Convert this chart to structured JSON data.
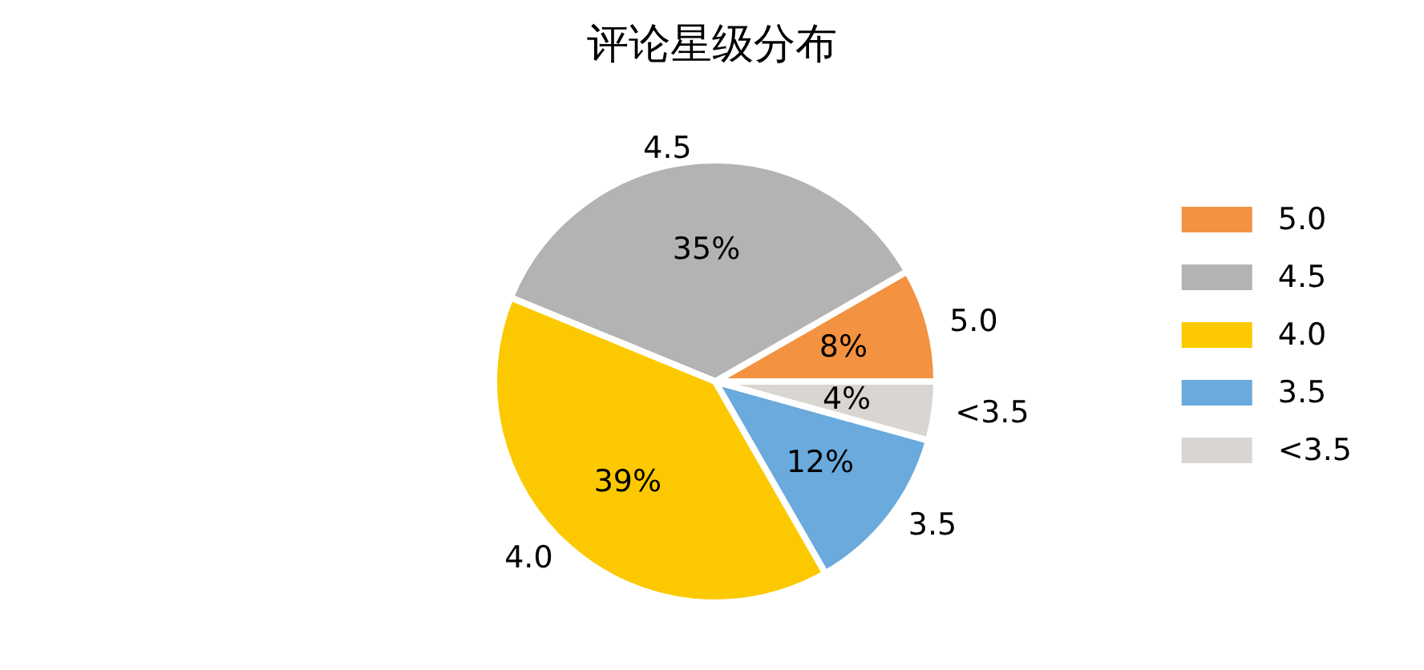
{
  "chart_data": {
    "type": "pie",
    "title": "评论星级分布",
    "categories": [
      "5.0",
      "4.5",
      "4.0",
      "3.5",
      "<3.5"
    ],
    "values": [
      8.3,
      35.5,
      39.5,
      12.4,
      4.3
    ],
    "value_labels": [
      "8%",
      "35%",
      "39%",
      "12%",
      "4%"
    ],
    "colors": [
      "#f39240",
      "#b3b3b3",
      "#fcc900",
      "#6aaadc",
      "#d9d5d1"
    ],
    "legend": "right"
  }
}
